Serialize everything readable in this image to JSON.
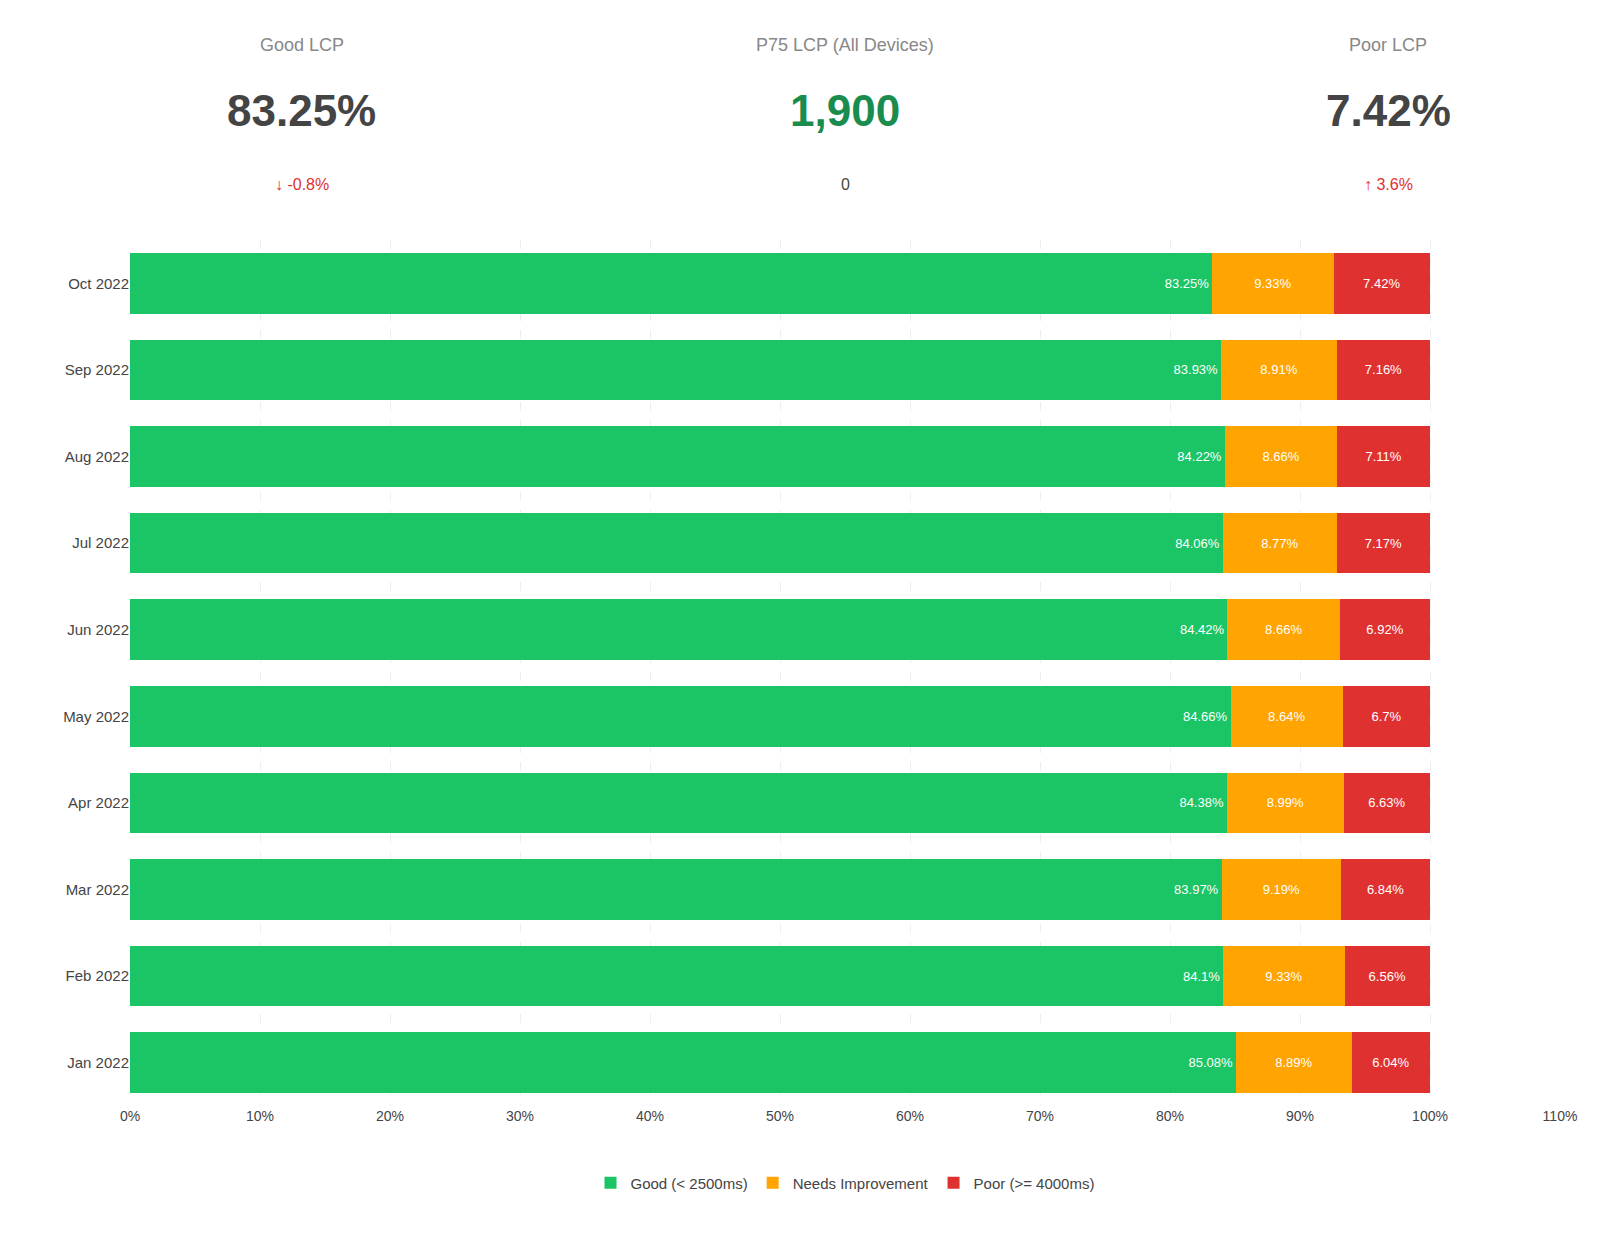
{
  "chart_data": {
    "type": "bar",
    "orientation": "horizontal",
    "stacked": true,
    "data_labels": true,
    "grid": true,
    "legend": "bottom",
    "annotations": [
      {
        "text": "Good LCP"
      },
      {
        "text": "83.25%"
      },
      {
        "text": "↓ -0.8%",
        "color": "#e03131"
      },
      {
        "text": "P75 LCP (All Devices)"
      },
      {
        "text": "1,900",
        "color": "#1a8c4e"
      },
      {
        "text": "0"
      },
      {
        "text": "Poor LCP"
      },
      {
        "text": "7.42%"
      },
      {
        "text": "↑ 3.6%",
        "color": "#e03131"
      }
    ],
    "categories": [
      "Jan 2022",
      "Feb 2022",
      "Mar 2022",
      "Apr 2022",
      "May 2022",
      "Jun 2022",
      "Jul 2022",
      "Aug 2022",
      "Sep 2022",
      "Oct 2022"
    ],
    "series": [
      {
        "name": "Good (< 2500ms)",
        "color": "#1bc464",
        "values": [
          85.08,
          84.1,
          83.97,
          84.38,
          84.66,
          84.42,
          84.06,
          84.22,
          83.93,
          83.25
        ],
        "value_labels": [
          "85.08%",
          "84.1%",
          "83.97%",
          "84.38%",
          "84.66%",
          "84.42%",
          "84.06%",
          "84.22%",
          "83.93%",
          "83.25%"
        ]
      },
      {
        "name": "Needs Improvement",
        "color": "#ffa400",
        "values": [
          8.89,
          9.33,
          9.19,
          8.99,
          8.64,
          8.66,
          8.77,
          8.66,
          8.91,
          9.33
        ],
        "value_labels": [
          "8.89%",
          "9.33%",
          "9.19%",
          "8.99%",
          "8.64%",
          "8.66%",
          "8.77%",
          "8.66%",
          "8.91%",
          "9.33%"
        ]
      },
      {
        "name": "Poor (>= 4000ms)",
        "color": "#e03131",
        "values": [
          6.04,
          6.56,
          6.84,
          6.63,
          6.7,
          6.92,
          7.17,
          7.11,
          7.16,
          7.42
        ],
        "value_labels": [
          "6.04%",
          "6.56%",
          "6.84%",
          "6.63%",
          "6.7%",
          "6.92%",
          "7.17%",
          "7.11%",
          "7.16%",
          "7.42%"
        ]
      }
    ],
    "xlim": [
      0,
      110
    ],
    "xticks": [
      {
        "value": 0,
        "label": "0%"
      },
      {
        "value": 10,
        "label": "10%"
      },
      {
        "value": 20,
        "label": "20%"
      },
      {
        "value": 30,
        "label": "30%"
      },
      {
        "value": 40,
        "label": "40%"
      },
      {
        "value": 50,
        "label": "50%"
      },
      {
        "value": 60,
        "label": "60%"
      },
      {
        "value": 70,
        "label": "70%"
      },
      {
        "value": 80,
        "label": "80%"
      },
      {
        "value": 90,
        "label": "90%"
      },
      {
        "value": 100,
        "label": "100%"
      },
      {
        "value": 110,
        "label": "110%"
      }
    ]
  }
}
